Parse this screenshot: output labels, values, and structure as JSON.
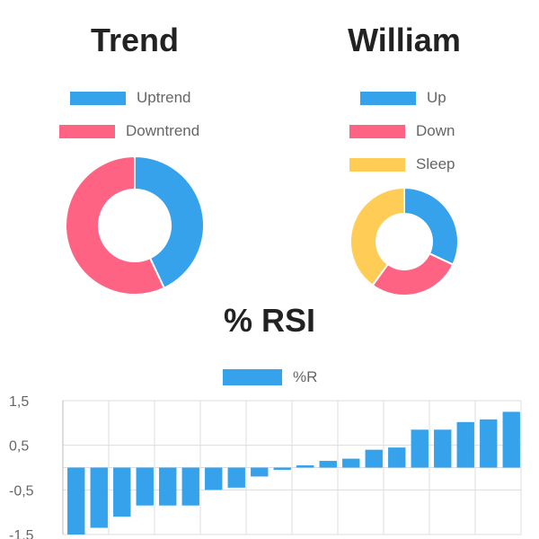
{
  "colors": {
    "blue": "#36A2EB",
    "pink": "#FF6384",
    "yellow": "#FFCD56",
    "grid": "#dddddd",
    "axis_text": "#666666"
  },
  "charts": {
    "trend": {
      "title": "Trend"
    },
    "william": {
      "title": "William"
    },
    "rsi": {
      "title": "% RSI"
    }
  },
  "chart_data": [
    {
      "type": "pie",
      "variant": "doughnut",
      "title": "Trend",
      "legend": "top",
      "labels": [
        "Uptrend",
        "Downtrend"
      ],
      "values": [
        43,
        57
      ],
      "colors": [
        "#36A2EB",
        "#FF6384"
      ]
    },
    {
      "type": "pie",
      "variant": "doughnut",
      "title": "William",
      "legend": "top",
      "labels": [
        "Up",
        "Down",
        "Sleep"
      ],
      "values": [
        32,
        28,
        40
      ],
      "colors": [
        "#36A2EB",
        "#FF6384",
        "#FFCD56"
      ]
    },
    {
      "type": "bar",
      "title": "% RSI",
      "legend": "top",
      "series": [
        {
          "name": "%R",
          "color": "#36A2EB",
          "values": [
            -1.5,
            -1.35,
            -1.1,
            -0.85,
            -0.85,
            -0.85,
            -0.5,
            -0.45,
            -0.2,
            -0.05,
            0.05,
            0.15,
            0.2,
            0.4,
            0.45,
            0.85,
            0.85,
            1.02,
            1.08,
            1.25
          ]
        }
      ],
      "yticks": [
        "1,5",
        "0,5",
        "-0,5",
        "-1,5"
      ],
      "ytick_values": [
        1.5,
        0.5,
        -0.5,
        -1.5
      ],
      "ylim": [
        -1.5,
        1.5
      ],
      "grid": true
    }
  ]
}
